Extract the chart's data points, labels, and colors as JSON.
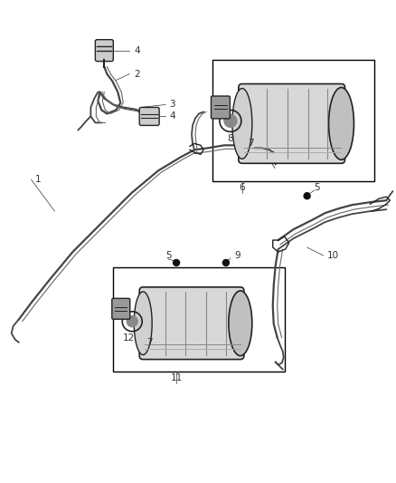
{
  "background_color": "#ffffff",
  "fig_width": 4.38,
  "fig_height": 5.33,
  "dpi": 100,
  "line_color": "#444444",
  "dark_color": "#222222",
  "mid_color": "#666666",
  "light_color": "#aaaaaa",
  "box_color": "#000000",
  "dot_color": "#111111",
  "label_color": "#333333",
  "label_fontsize": 7.5,
  "lw_main": 1.3,
  "lw_thin": 0.8
}
